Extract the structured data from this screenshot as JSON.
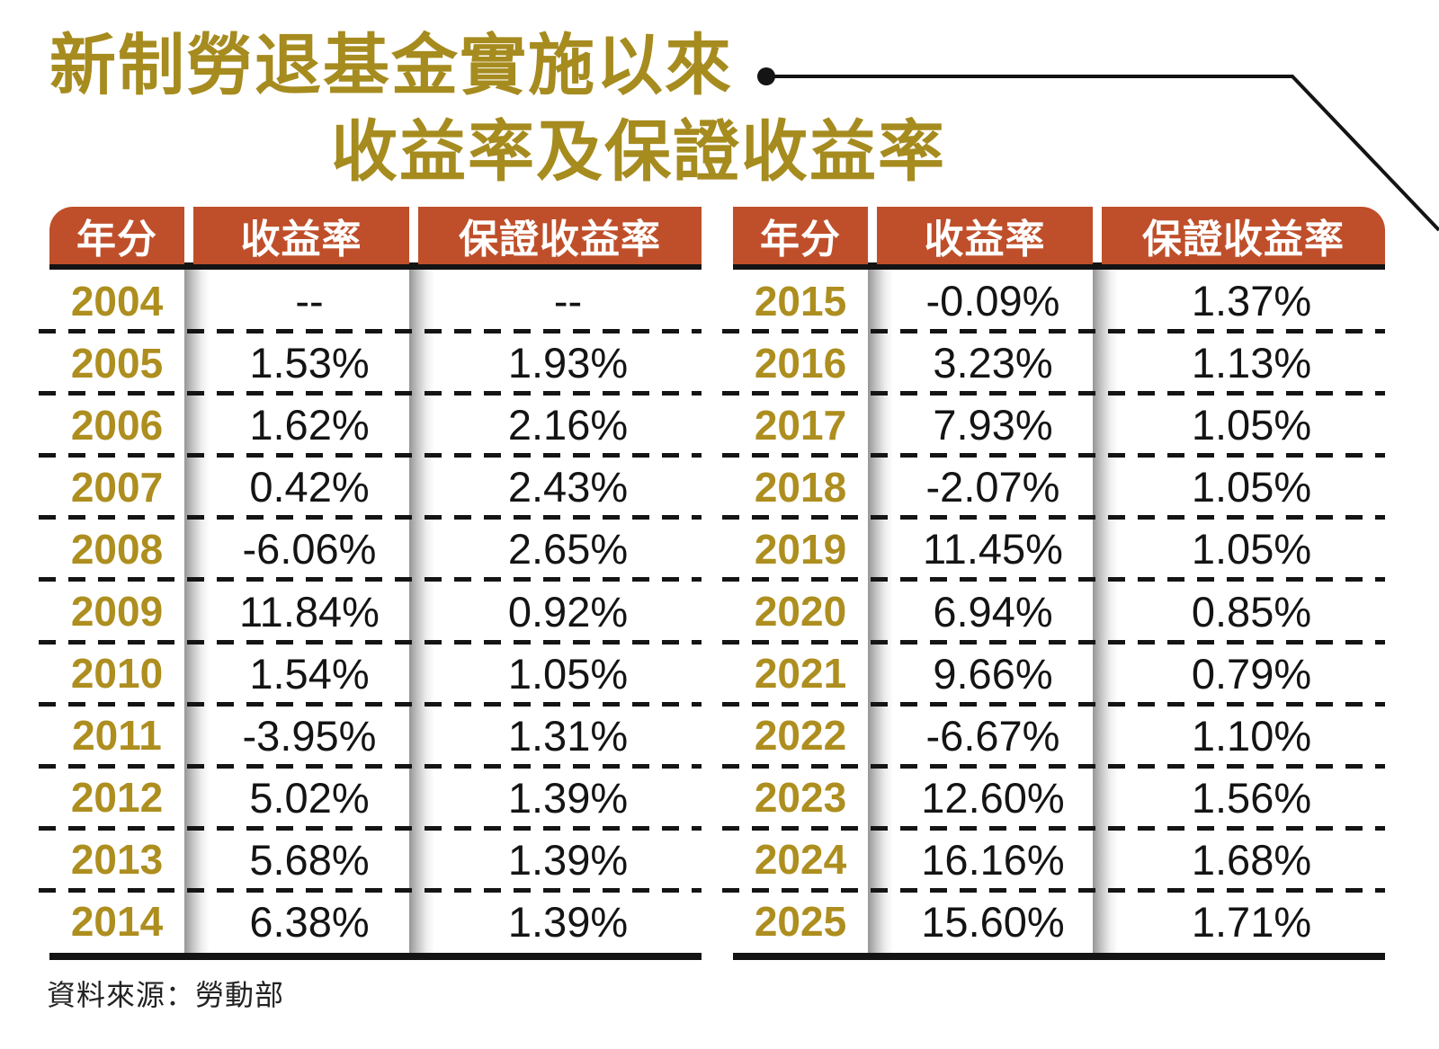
{
  "title": {
    "line1": "新制勞退基金實施以來",
    "line2": "收益率及保證收益率"
  },
  "columns": [
    "年分",
    "收益率",
    "保證收益率"
  ],
  "tables": [
    {
      "name": "years-2004-2014",
      "rows": [
        [
          "2004",
          "--",
          "--"
        ],
        [
          "2005",
          "1.53%",
          "1.93%"
        ],
        [
          "2006",
          "1.62%",
          "2.16%"
        ],
        [
          "2007",
          "0.42%",
          "2.43%"
        ],
        [
          "2008",
          "-6.06%",
          "2.65%"
        ],
        [
          "2009",
          "11.84%",
          "0.92%"
        ],
        [
          "2010",
          "1.54%",
          "1.05%"
        ],
        [
          "2011",
          "-3.95%",
          "1.31%"
        ],
        [
          "2012",
          "5.02%",
          "1.39%"
        ],
        [
          "2013",
          "5.68%",
          "1.39%"
        ],
        [
          "2014",
          "6.38%",
          "1.39%"
        ]
      ]
    },
    {
      "name": "years-2015-2025",
      "rows": [
        [
          "2015",
          "-0.09%",
          "1.37%"
        ],
        [
          "2016",
          "3.23%",
          "1.13%"
        ],
        [
          "2017",
          "7.93%",
          "1.05%"
        ],
        [
          "2018",
          "-2.07%",
          "1.05%"
        ],
        [
          "2019",
          "11.45%",
          "1.05%"
        ],
        [
          "2020",
          "6.94%",
          "0.85%"
        ],
        [
          "2021",
          "9.66%",
          "0.79%"
        ],
        [
          "2022",
          "-6.67%",
          "1.10%"
        ],
        [
          "2023",
          "12.60%",
          "1.56%"
        ],
        [
          "2024",
          "16.16%",
          "1.68%"
        ],
        [
          "2025",
          "15.60%",
          "1.71%"
        ]
      ]
    }
  ],
  "source_note": "資料來源：勞動部",
  "colors": {
    "title_gold": "#a68b1f",
    "year_gold": "#ad8e1f",
    "header_red": "#bf4f2a",
    "ink": "#141414"
  },
  "chart_data": {
    "type": "table",
    "title": "新制勞退基金實施以來收益率及保證收益率",
    "columns": [
      "年分",
      "收益率",
      "保證收益率"
    ],
    "layout": "two side-by-side tables (2004-2014 left, 2015-2025 right)",
    "rows": [
      [
        "2004",
        "--",
        "--"
      ],
      [
        "2005",
        "1.53%",
        "1.93%"
      ],
      [
        "2006",
        "1.62%",
        "2.16%"
      ],
      [
        "2007",
        "0.42%",
        "2.43%"
      ],
      [
        "2008",
        "-6.06%",
        "2.65%"
      ],
      [
        "2009",
        "11.84%",
        "0.92%"
      ],
      [
        "2010",
        "1.54%",
        "1.05%"
      ],
      [
        "2011",
        "-3.95%",
        "1.31%"
      ],
      [
        "2012",
        "5.02%",
        "1.39%"
      ],
      [
        "2013",
        "5.68%",
        "1.39%"
      ],
      [
        "2014",
        "6.38%",
        "1.39%"
      ],
      [
        "2015",
        "-0.09%",
        "1.37%"
      ],
      [
        "2016",
        "3.23%",
        "1.13%"
      ],
      [
        "2017",
        "7.93%",
        "1.05%"
      ],
      [
        "2018",
        "-2.07%",
        "1.05%"
      ],
      [
        "2019",
        "11.45%",
        "1.05%"
      ],
      [
        "2020",
        "6.94%",
        "0.85%"
      ],
      [
        "2021",
        "9.66%",
        "0.79%"
      ],
      [
        "2022",
        "-6.67%",
        "1.10%"
      ],
      [
        "2023",
        "12.60%",
        "1.56%"
      ],
      [
        "2024",
        "16.16%",
        "1.68%"
      ],
      [
        "2025",
        "15.60%",
        "1.71%"
      ]
    ],
    "source": "資料來源：勞動部"
  }
}
